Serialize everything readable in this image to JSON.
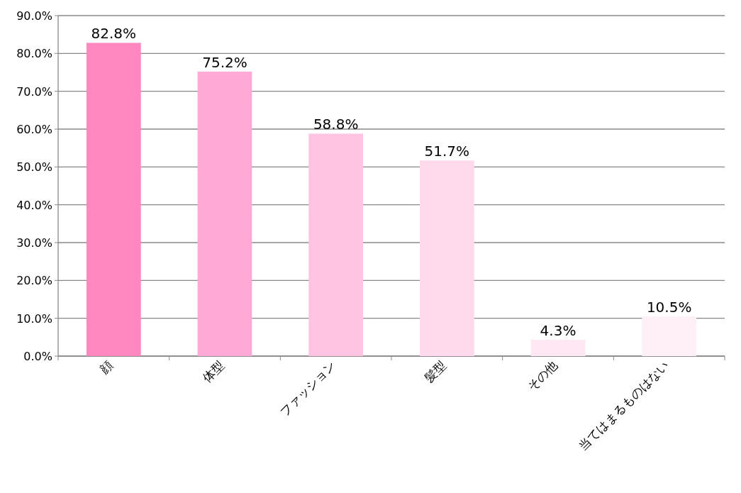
{
  "chart_data": {
    "type": "bar",
    "categories": [
      "顔",
      "体型",
      "ファッション",
      "髪型",
      "その他",
      "当てはまるものはない"
    ],
    "values": [
      82.8,
      75.2,
      58.8,
      51.7,
      4.3,
      10.5
    ],
    "value_labels": [
      "82.8%",
      "75.2%",
      "58.8%",
      "51.7%",
      "4.3%",
      "10.5%"
    ],
    "colors": [
      "#ff88c0",
      "#ffaad6",
      "#ffc4e2",
      "#ffd9ec",
      "#ffe8f3",
      "#fff0f7"
    ],
    "ylim": [
      0,
      90
    ],
    "yticks": [
      {
        "value": 0,
        "label": "0.0%"
      },
      {
        "value": 10,
        "label": "10.0%"
      },
      {
        "value": 20,
        "label": "20.0%"
      },
      {
        "value": 30,
        "label": "30.0%"
      },
      {
        "value": 40,
        "label": "40.0%"
      },
      {
        "value": 50,
        "label": "50.0%"
      },
      {
        "value": 60,
        "label": "60.0%"
      },
      {
        "value": 70,
        "label": "70.0%"
      },
      {
        "value": 80,
        "label": "80.0%"
      },
      {
        "value": 90,
        "label": "90.0%"
      }
    ],
    "grid": "y"
  }
}
